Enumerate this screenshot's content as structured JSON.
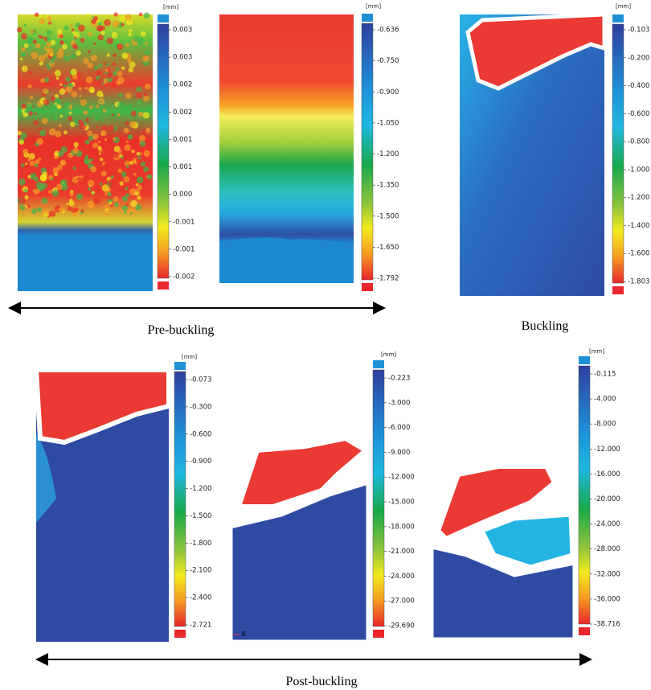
{
  "panels": [
    {
      "unit": "[mm]",
      "labels": [
        "0.003",
        "0.003",
        "0.002",
        "0.002",
        "0.001",
        "0.001",
        "0.000",
        "-0.001",
        "-0.001",
        "-0.002"
      ]
    },
    {
      "unit": "[mm]",
      "labels": [
        "-0.636",
        "-0.750",
        "-0.900",
        "-1.050",
        "-1.200",
        "-1.350",
        "-1.500",
        "-1.650",
        "-1.792"
      ]
    },
    {
      "unit": "[mm]",
      "labels": [
        "-0.103",
        "-0.200",
        "-0.400",
        "-0.600",
        "-0.800",
        "-1.000",
        "-1.200",
        "-1.400",
        "-1.600",
        "-1.803"
      ]
    },
    {
      "unit": "[mm]",
      "labels": [
        "-0.073",
        "-0.300",
        "-0.600",
        "-0.900",
        "-1.200",
        "-1.500",
        "-1.800",
        "-2.100",
        "-2.400",
        "-2.721"
      ]
    },
    {
      "unit": "[mm]",
      "labels": [
        "-0.223",
        "-3.000",
        "-6.000",
        "-9.000",
        "-12.000",
        "-15.000",
        "-18.000",
        "-21.000",
        "-24.000",
        "-27.000",
        "-29.690"
      ],
      "axis_marker": "X"
    },
    {
      "unit": "[mm]",
      "labels": [
        "-0.115",
        "-4.000",
        "-8.000",
        "-12.000",
        "-16.000",
        "-20.000",
        "-24.000",
        "-28.000",
        "-32.000",
        "-36.000",
        "-38.716"
      ]
    }
  ],
  "captions": {
    "pre": "Pre-buckling",
    "buckling": "Buckling",
    "post": "Post-buckling"
  }
}
